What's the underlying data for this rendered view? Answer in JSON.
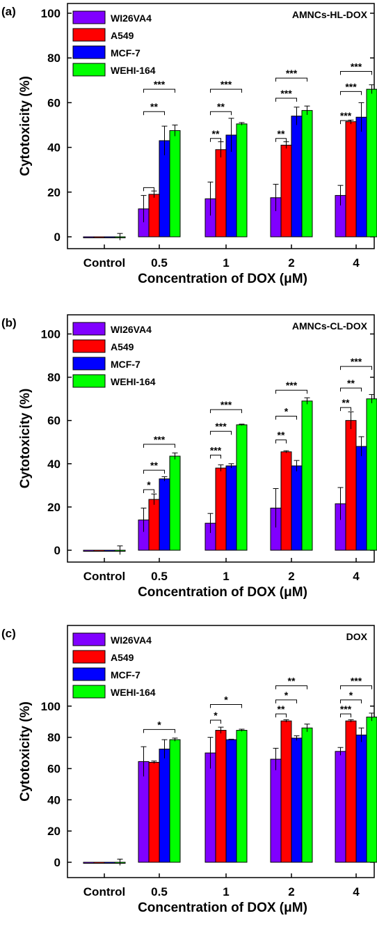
{
  "legend": [
    "WI26VA4",
    "A549",
    "MCF-7",
    "WEHI-164"
  ],
  "colors": {
    "WI26VA4": "#8000ff",
    "A549": "#ff0000",
    "MCF-7": "#0000ff",
    "WEHI-164": "#00ff00"
  },
  "chart_data": [
    {
      "type": "bar",
      "panel_label": "(a)",
      "title": "AMNCs-HL-DOX",
      "xlabel": "Concentration of DOX (μM)",
      "ylabel": "Cytotoxicity (%)",
      "ylim": [
        -5,
        110
      ],
      "yticks": [
        0,
        20,
        40,
        60,
        80,
        100
      ],
      "categories": [
        "Control",
        "0.5",
        "1",
        "2",
        "4"
      ],
      "legend_position": "top-left",
      "series": [
        {
          "name": "WI26VA4",
          "values": [
            0,
            12.5,
            17,
            17.5,
            18.5
          ],
          "errors": [
            0,
            6,
            7.5,
            6,
            4.5
          ]
        },
        {
          "name": "A549",
          "values": [
            0,
            19,
            39,
            41,
            51.5
          ],
          "errors": [
            0,
            1.5,
            3.5,
            1.5,
            0.7
          ]
        },
        {
          "name": "MCF-7",
          "values": [
            0,
            43,
            45.5,
            54,
            53.5
          ],
          "errors": [
            0,
            6.5,
            7.5,
            4,
            6.5
          ]
        },
        {
          "name": "WEHI-164",
          "values": [
            0,
            47.5,
            50.5,
            56.5,
            66
          ],
          "errors": [
            1.5,
            2.5,
            0.6,
            2,
            2
          ]
        }
      ],
      "significance": [
        {
          "category": "0.5",
          "from": 0,
          "to": 1,
          "label": "",
          "y": 22
        },
        {
          "category": "0.5",
          "from": 0,
          "to": 2,
          "label": "**",
          "y": 56
        },
        {
          "category": "0.5",
          "from": 0,
          "to": 3,
          "label": "***",
          "y": 66
        },
        {
          "category": "1",
          "from": 0,
          "to": 1,
          "label": "**",
          "y": 44
        },
        {
          "category": "1",
          "from": 0,
          "to": 2,
          "label": "**",
          "y": 56
        },
        {
          "category": "1",
          "from": 0,
          "to": 3,
          "label": "***",
          "y": 66
        },
        {
          "category": "2",
          "from": 0,
          "to": 1,
          "label": "**",
          "y": 44
        },
        {
          "category": "2",
          "from": 0,
          "to": 2,
          "label": "***",
          "y": 62
        },
        {
          "category": "2",
          "from": 0,
          "to": 3,
          "label": "***",
          "y": 71
        },
        {
          "category": "4",
          "from": 0,
          "to": 1,
          "label": "***",
          "y": 52
        },
        {
          "category": "4",
          "from": 0,
          "to": 2,
          "label": "***",
          "y": 65
        },
        {
          "category": "4",
          "from": 0,
          "to": 3,
          "label": "***",
          "y": 74
        }
      ]
    },
    {
      "type": "bar",
      "panel_label": "(b)",
      "title": "AMNCs-CL-DOX",
      "xlabel": "Concentration of DOX (μM)",
      "ylabel": "Cytotoxicity (%)",
      "ylim": [
        -5,
        110
      ],
      "yticks": [
        0,
        20,
        40,
        60,
        80,
        100
      ],
      "categories": [
        "Control",
        "0.5",
        "1",
        "2",
        "4"
      ],
      "legend_position": "top-left",
      "series": [
        {
          "name": "WI26VA4",
          "values": [
            0,
            14,
            12.5,
            19.5,
            21.5
          ],
          "errors": [
            0,
            5.5,
            4.5,
            9,
            7.5
          ]
        },
        {
          "name": "A549",
          "values": [
            0,
            23.5,
            38,
            45.5,
            60
          ],
          "errors": [
            0,
            2.5,
            1.5,
            0.5,
            4
          ]
        },
        {
          "name": "MCF-7",
          "values": [
            0,
            33,
            39,
            39,
            48
          ],
          "errors": [
            0,
            1,
            1,
            2.5,
            4.5
          ]
        },
        {
          "name": "WEHI-164",
          "values": [
            0,
            43.5,
            58,
            69,
            70
          ],
          "errors": [
            2,
            1.5,
            0.3,
            1.5,
            2
          ]
        }
      ],
      "significance": [
        {
          "category": "0.5",
          "from": 0,
          "to": 1,
          "label": "*",
          "y": 28
        },
        {
          "category": "0.5",
          "from": 0,
          "to": 2,
          "label": "**",
          "y": 37
        },
        {
          "category": "0.5",
          "from": 0,
          "to": 3,
          "label": "***",
          "y": 49
        },
        {
          "category": "1",
          "from": 0,
          "to": 1,
          "label": "***",
          "y": 44
        },
        {
          "category": "1",
          "from": 0,
          "to": 2,
          "label": "***",
          "y": 55
        },
        {
          "category": "1",
          "from": 0,
          "to": 3,
          "label": "***",
          "y": 65
        },
        {
          "category": "2",
          "from": 0,
          "to": 1,
          "label": "**",
          "y": 51
        },
        {
          "category": "2",
          "from": 0,
          "to": 2,
          "label": "*",
          "y": 62
        },
        {
          "category": "2",
          "from": 0,
          "to": 3,
          "label": "***",
          "y": 74
        },
        {
          "category": "4",
          "from": 0,
          "to": 1,
          "label": "**",
          "y": 66
        },
        {
          "category": "4",
          "from": 0,
          "to": 2,
          "label": "**",
          "y": 75
        },
        {
          "category": "4",
          "from": 0,
          "to": 3,
          "label": "***",
          "y": 85
        }
      ]
    },
    {
      "type": "bar",
      "panel_label": "(c)",
      "title": "DOX",
      "xlabel": "Concentration of DOX (μM)",
      "ylabel": "Cytotoxicity (%)",
      "ylim": [
        -5,
        120
      ],
      "yticks": [
        0,
        20,
        40,
        60,
        80,
        100
      ],
      "categories": [
        "Control",
        "0.5",
        "1",
        "2",
        "4"
      ],
      "legend_position": "top-left",
      "series": [
        {
          "name": "WI26VA4",
          "values": [
            0,
            64.5,
            70,
            66,
            71
          ],
          "errors": [
            0,
            9.5,
            10,
            7,
            2.5
          ]
        },
        {
          "name": "A549",
          "values": [
            0,
            64,
            84.5,
            90.5,
            90.5
          ],
          "errors": [
            0,
            0.8,
            2,
            0.8,
            0.8
          ]
        },
        {
          "name": "MCF-7",
          "values": [
            0,
            72.5,
            78.5,
            79.5,
            81.5
          ],
          "errors": [
            0,
            6,
            0.3,
            1.5,
            4.5
          ]
        },
        {
          "name": "WEHI-164",
          "values": [
            0,
            78.5,
            84.5,
            86,
            93
          ],
          "errors": [
            2,
            1,
            0.7,
            2.5,
            2.5
          ]
        }
      ],
      "significance": [
        {
          "category": "0.5",
          "from": 0,
          "to": 3,
          "label": "*",
          "y": 85
        },
        {
          "category": "1",
          "from": 0,
          "to": 1,
          "label": "*",
          "y": 91
        },
        {
          "category": "1",
          "from": 0,
          "to": 3,
          "label": "*",
          "y": 101
        },
        {
          "category": "2",
          "from": 0,
          "to": 1,
          "label": "**",
          "y": 95
        },
        {
          "category": "2",
          "from": 0,
          "to": 2,
          "label": "*",
          "y": 104
        },
        {
          "category": "2",
          "from": 0,
          "to": 3,
          "label": "**",
          "y": 113
        },
        {
          "category": "4",
          "from": 0,
          "to": 1,
          "label": "***",
          "y": 95
        },
        {
          "category": "4",
          "from": 0,
          "to": 2,
          "label": "*",
          "y": 104
        },
        {
          "category": "4",
          "from": 0,
          "to": 3,
          "label": "***",
          "y": 113
        }
      ]
    }
  ]
}
